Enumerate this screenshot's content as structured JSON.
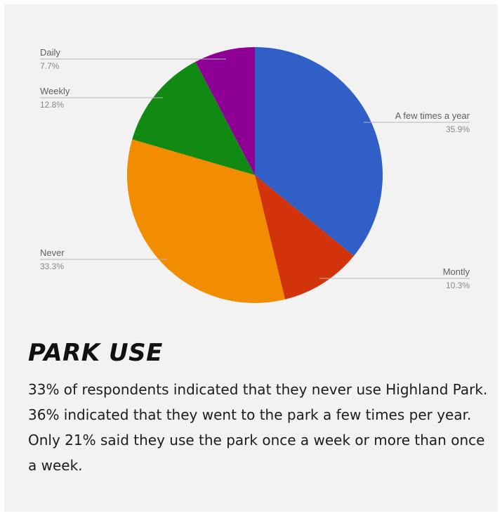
{
  "chart_data": {
    "type": "pie",
    "title": "",
    "start_angle_deg": 0,
    "direction": "clockwise",
    "slices": [
      {
        "label": "A few times a year",
        "value": 35.9,
        "value_label": "35.9%",
        "color": "#2f5fc7"
      },
      {
        "label": "Montly",
        "value": 10.3,
        "value_label": "10.3%",
        "color": "#d2330a"
      },
      {
        "label": "Never",
        "value": 33.3,
        "value_label": "33.3%",
        "color": "#f28c00"
      },
      {
        "label": "Weekly",
        "value": 12.8,
        "value_label": "12.8%",
        "color": "#108a12"
      },
      {
        "label": "Daily",
        "value": 7.7,
        "value_label": "7.7%",
        "color": "#8e0095"
      }
    ]
  },
  "section": {
    "heading": "PARK USE",
    "body": "33% of respondents indicated that they never use Highland Park. 36% indicated that they went to the park a few times per year. Only 21% said they use the park once a week or more than once a week."
  }
}
